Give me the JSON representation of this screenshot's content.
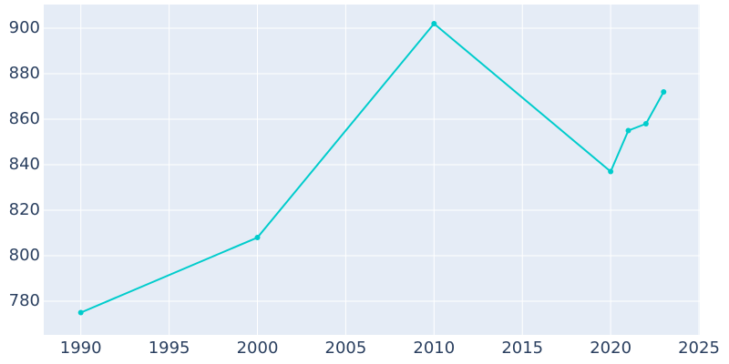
{
  "chart_data": {
    "type": "line",
    "x": [
      1990,
      2000,
      2010,
      2020,
      2021,
      2022,
      2023
    ],
    "series": [
      {
        "color": "#00cccc",
        "values": [
          775,
          808,
          902,
          837,
          855,
          858,
          872
        ]
      }
    ],
    "xlim": [
      1987.9,
      2025.05
    ],
    "xticks": [
      1990,
      1995,
      2000,
      2005,
      2010,
      2015,
      2020,
      2025
    ],
    "ylim": [
      765.2,
      910.4
    ],
    "yticks": [
      780,
      800,
      820,
      840,
      860,
      880,
      900
    ],
    "grid": true
  }
}
